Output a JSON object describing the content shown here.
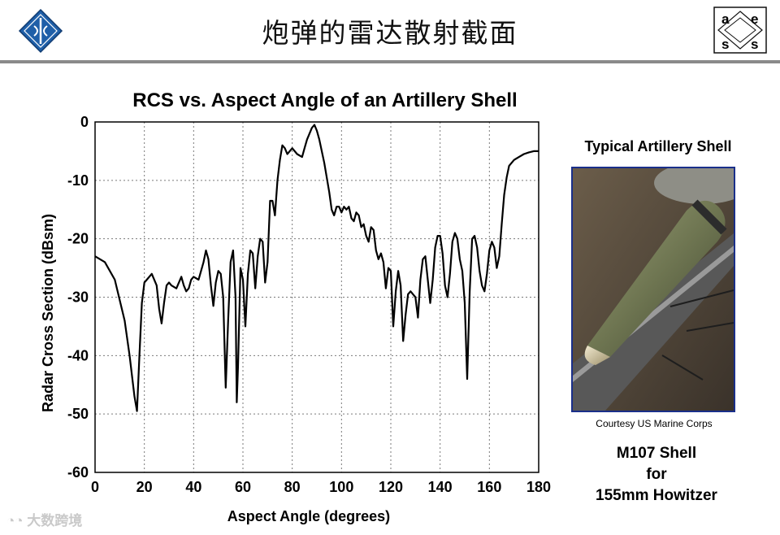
{
  "slide": {
    "title": "炮弹的雷达散射截面",
    "right_logo": {
      "letters": [
        "a",
        "e",
        "s",
        "s"
      ]
    },
    "watermark": "大数跨境",
    "accent_color": "#1a2f8a"
  },
  "side_panel": {
    "title": "Typical Artillery Shell",
    "photo_credit": "Courtesy US Marine Corps",
    "caption_line1": "M107 Shell",
    "caption_line2": "for",
    "caption_line3": "155mm Howitzer"
  },
  "chart_data": {
    "type": "line",
    "title": "RCS vs. Aspect Angle of an Artillery Shell",
    "xlabel": "Aspect Angle (degrees)",
    "ylabel": "Radar Cross Section (dBsm)",
    "xlim": [
      0,
      180
    ],
    "ylim": [
      -60,
      0
    ],
    "xticks": [
      0,
      20,
      40,
      60,
      80,
      100,
      120,
      140,
      160,
      180
    ],
    "yticks": [
      0,
      -10,
      -20,
      -30,
      -40,
      -50,
      -60
    ],
    "grid": true,
    "series": [
      {
        "color": "#000000",
        "x": [
          0,
          4,
          8,
          12,
          14,
          16,
          17,
          18,
          19,
          20,
          21,
          23,
          25,
          26,
          27,
          28,
          29,
          30,
          31,
          33,
          35,
          36,
          37,
          38,
          39,
          40,
          42,
          44,
          45,
          46,
          47,
          48,
          49,
          50,
          51,
          52,
          53,
          54,
          55,
          56,
          57,
          57.5,
          58,
          59,
          60,
          61,
          62,
          63,
          64,
          65,
          66,
          67,
          68,
          69,
          70,
          71,
          72,
          73,
          74,
          75,
          76,
          77,
          78,
          79,
          80,
          82,
          84,
          85,
          86,
          88,
          89,
          90,
          91,
          93,
          95,
          96,
          97,
          98,
          99,
          100,
          101,
          102,
          103,
          104,
          105,
          106,
          107,
          108,
          109,
          110,
          111,
          112,
          113,
          114,
          115,
          116,
          117,
          118,
          119,
          120,
          121,
          122,
          123,
          124,
          125,
          126,
          127,
          128,
          129,
          130,
          131,
          132,
          133,
          134,
          135,
          136,
          137,
          138,
          139,
          140,
          141,
          142,
          143,
          144,
          145,
          146,
          147,
          148,
          149,
          150,
          151,
          152,
          153,
          154,
          155,
          156,
          157,
          158,
          159,
          160,
          161,
          162,
          163,
          164,
          165,
          166,
          167,
          168,
          170,
          172,
          174,
          176,
          178,
          180
        ],
        "y": [
          -23,
          -24,
          -27,
          -34,
          -40,
          -47,
          -49.5,
          -40,
          -31,
          -27.5,
          -27,
          -26,
          -28,
          -32,
          -34.5,
          -31,
          -28,
          -27.5,
          -28,
          -28.5,
          -26.5,
          -28,
          -29,
          -28.5,
          -27,
          -26.5,
          -27,
          -24,
          -22,
          -23.5,
          -28,
          -31.5,
          -27.5,
          -25.5,
          -26,
          -30,
          -45.5,
          -34,
          -24,
          -22,
          -30,
          -48,
          -42,
          -25,
          -27,
          -35,
          -26,
          -22,
          -22.5,
          -28.5,
          -23,
          -20,
          -20.5,
          -27.5,
          -24,
          -13.5,
          -13.5,
          -16,
          -10,
          -6.5,
          -4,
          -4.5,
          -5.5,
          -5,
          -4.5,
          -5.5,
          -6,
          -4.5,
          -3,
          -1,
          -0.5,
          -1.5,
          -3,
          -7,
          -12,
          -15,
          -16,
          -14.5,
          -14.5,
          -15.5,
          -14.5,
          -15,
          -14.5,
          -16.5,
          -17,
          -15.5,
          -16,
          -18,
          -17.5,
          -19.5,
          -20.5,
          -18,
          -18.5,
          -22,
          -23.5,
          -22.5,
          -24,
          -28.5,
          -25,
          -25.5,
          -35,
          -29,
          -25.5,
          -28,
          -37.5,
          -33,
          -29.5,
          -29,
          -29.5,
          -30,
          -33.5,
          -27,
          -23.5,
          -23,
          -27,
          -31,
          -27,
          -21.5,
          -19.5,
          -19.5,
          -22.5,
          -28,
          -30,
          -26,
          -20.5,
          -19,
          -20,
          -23.5,
          -25.5,
          -31,
          -44,
          -29,
          -20,
          -19.5,
          -21.5,
          -25.5,
          -28,
          -29,
          -26,
          -22,
          -20.5,
          -21.5,
          -25,
          -23,
          -17.5,
          -12.5,
          -9.5,
          -7.5,
          -6.5,
          -6,
          -5.5,
          -5.2,
          -5,
          -5
        ]
      }
    ]
  }
}
